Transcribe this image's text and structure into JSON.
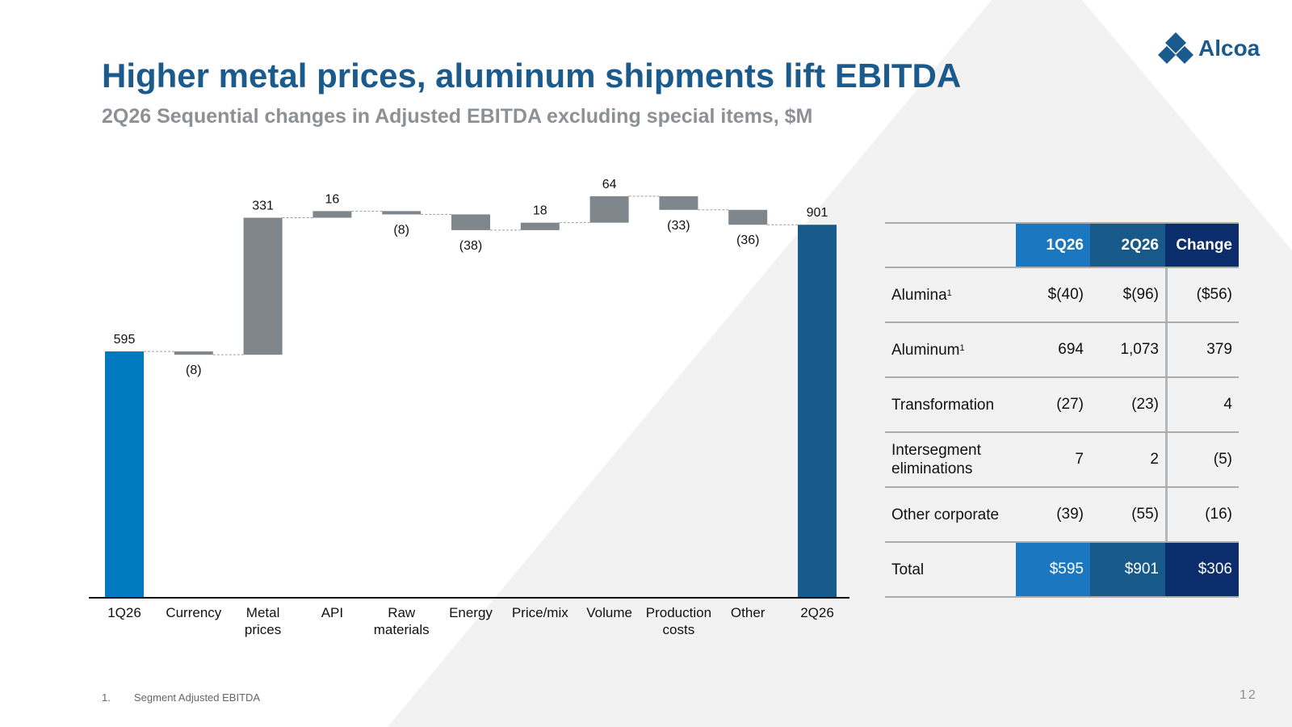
{
  "title": "Higher metal prices, aluminum shipments lift EBITDA",
  "subtitle": "2Q26 Sequential changes in Adjusted EBITDA excluding special items, $M",
  "brand": {
    "name": "Alcoa",
    "color": "#1b5a8c",
    "logo_icon": "alcoa-diamond-logo-icon"
  },
  "colors": {
    "start_bar": "#0079c1",
    "end_bar": "#175a8a",
    "delta_bar": "#7f868c",
    "hdr_q1": "#1b78c0",
    "hdr_q2": "#175a8a",
    "hdr_change": "#0b2d6b"
  },
  "chart_data": {
    "type": "bar",
    "variant": "waterfall",
    "categories": [
      "1Q26",
      "Currency",
      "Metal prices",
      "API",
      "Raw materials",
      "Energy",
      "Price/mix",
      "Volume",
      "Production costs",
      "Other",
      "2Q26"
    ],
    "category_lines": [
      [
        "1Q26"
      ],
      [
        "Currency"
      ],
      [
        "Metal",
        "prices"
      ],
      [
        "API"
      ],
      [
        "Raw",
        "materials"
      ],
      [
        "Energy"
      ],
      [
        "Price/mix"
      ],
      [
        "Volume"
      ],
      [
        "Production",
        "costs"
      ],
      [
        "Other"
      ],
      [
        "2Q26"
      ]
    ],
    "values": [
      595,
      -8,
      331,
      16,
      -8,
      -38,
      18,
      64,
      -33,
      -36,
      901
    ],
    "kinds": [
      "total",
      "delta",
      "delta",
      "delta",
      "delta",
      "delta",
      "delta",
      "delta",
      "delta",
      "delta",
      "total"
    ],
    "data_labels": [
      "595",
      "(8)",
      "331",
      "16",
      "(8)",
      "(38)",
      "18",
      "64",
      "(33)",
      "(36)",
      "901"
    ],
    "ylim": [
      0,
      1000
    ],
    "grid": false,
    "legend": "none"
  },
  "table": {
    "headers": [
      "",
      "1Q26",
      "2Q26",
      "Change"
    ],
    "rows": [
      {
        "label": "Alumina",
        "sup": "1",
        "q1": "$(40)",
        "q2": "$(96)",
        "change": "($56)"
      },
      {
        "label": "Aluminum",
        "sup": "1",
        "q1": "694",
        "q2": "1,073",
        "change": "379"
      },
      {
        "label": "Transformation",
        "sup": "",
        "q1": "(27)",
        "q2": "(23)",
        "change": "4"
      },
      {
        "label": "Intersegment eliminations",
        "sup": "",
        "q1": "7",
        "q2": "2",
        "change": "(5)"
      },
      {
        "label": "Other corporate",
        "sup": "",
        "q1": "(39)",
        "q2": "(55)",
        "change": "(16)"
      }
    ],
    "total": {
      "label": "Total",
      "q1": "$595",
      "q2": "$901",
      "change": "$306"
    }
  },
  "footnote": {
    "number": "1.",
    "text": "Segment Adjusted EBITDA"
  },
  "page_number": "12"
}
